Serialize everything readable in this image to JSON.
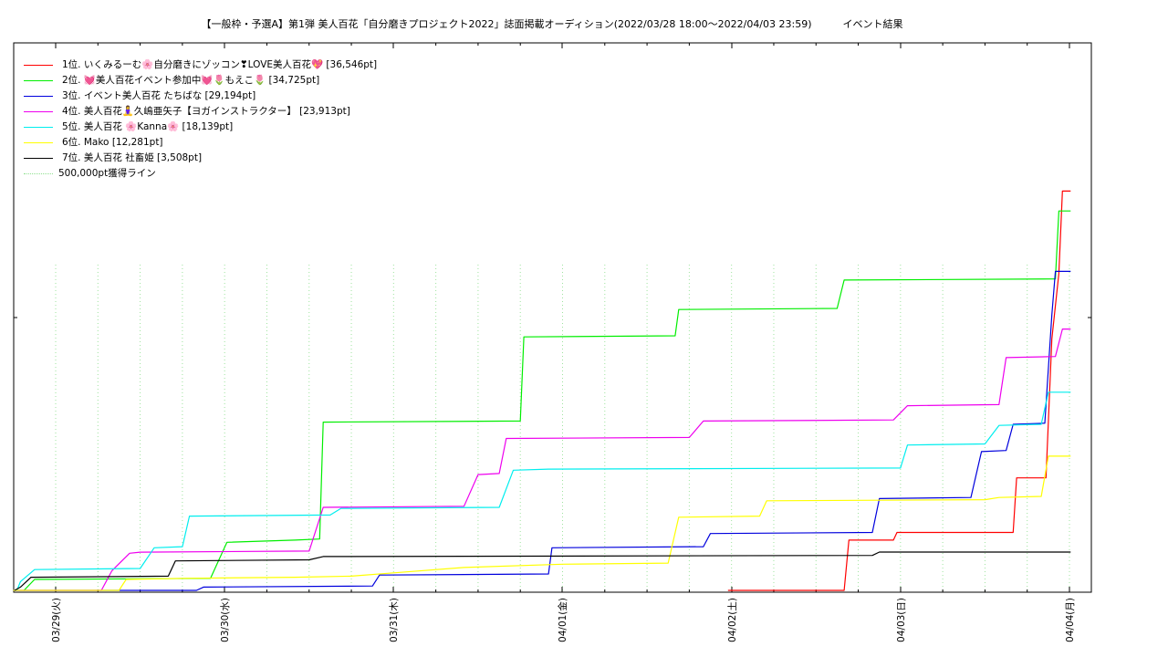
{
  "chart_data": {
    "type": "line",
    "title_part1": "【一般枠・予選A】第1弾 美人百花「自分磨きプロジェクト2022」誌面掲載オーディション(2022/03/28 18:00〜2022/04/03 23:59)",
    "title_part2": "イベント結果",
    "x_ticks": [
      "03/29(火)",
      "03/30(水)",
      "03/31(木)",
      "04/01(金)",
      "04/02(土)",
      "04/03(日)",
      "04/04(月)"
    ],
    "xlim": [
      "2022-03-28 18:00",
      "2022-04-04 00:10"
    ],
    "ylim": [
      0,
      40000
    ],
    "grid": "x-only dotted",
    "legend_placement": "top-left",
    "reference_line": {
      "label": "500,000pt獲得ライン",
      "value": 500000,
      "color": "#8fe08f"
    },
    "series": [
      {
        "name": "1位. いくみるーむ🌸自分磨きにゾッコン❣LOVE美人百花💖 [36,546pt]",
        "color": "#ff0000",
        "points": [
          [
            "2022-04-01 23:30",
            0
          ],
          [
            "2022-04-02 16:00",
            0
          ],
          [
            "2022-04-02 16:40",
            4600
          ],
          [
            "2022-04-02 23:00",
            4600
          ],
          [
            "2022-04-02 23:30",
            5300
          ],
          [
            "2022-04-03 16:00",
            5300
          ],
          [
            "2022-04-03 16:30",
            10300
          ],
          [
            "2022-04-03 20:40",
            10300
          ],
          [
            "2022-04-03 21:30",
            23000
          ],
          [
            "2022-04-03 22:30",
            29000
          ],
          [
            "2022-04-03 23:00",
            36546
          ],
          [
            "2022-04-04 00:10",
            36546
          ]
        ]
      },
      {
        "name": "2位. 💓美人百花イベント参加中💓🌷もえこ🌷 [34,725pt]",
        "color": "#00ee00",
        "points": [
          [
            "2022-03-28 19:30",
            0
          ],
          [
            "2022-03-28 21:00",
            1000
          ],
          [
            "2022-03-29 22:00",
            1100
          ],
          [
            "2022-03-30 00:20",
            4400
          ],
          [
            "2022-03-30 10:00",
            4600
          ],
          [
            "2022-03-30 13:30",
            4700
          ],
          [
            "2022-03-30 14:00",
            15400
          ],
          [
            "2022-03-31 18:00",
            15500
          ],
          [
            "2022-03-31 18:30",
            23200
          ],
          [
            "2022-04-01 16:00",
            23300
          ],
          [
            "2022-04-01 16:30",
            25700
          ],
          [
            "2022-04-02 15:00",
            25800
          ],
          [
            "2022-04-02 16:00",
            28400
          ],
          [
            "2022-04-03 22:00",
            28500
          ],
          [
            "2022-04-03 22:30",
            34725
          ],
          [
            "2022-04-04 00:10",
            34725
          ]
        ]
      },
      {
        "name": "3位. イベント美人百花 たちばな [29,194pt]",
        "color": "#0000dd",
        "points": [
          [
            "2022-03-28 18:20",
            0
          ],
          [
            "2022-03-29 20:00",
            0
          ],
          [
            "2022-03-29 21:00",
            300
          ],
          [
            "2022-03-30 21:00",
            400
          ],
          [
            "2022-03-30 22:00",
            1400
          ],
          [
            "2022-03-31 22:00",
            1500
          ],
          [
            "2022-03-31 22:30",
            3900
          ],
          [
            "2022-04-01 20:00",
            4000
          ],
          [
            "2022-04-01 21:00",
            5200
          ],
          [
            "2022-04-02 20:00",
            5300
          ],
          [
            "2022-04-02 21:00",
            8400
          ],
          [
            "2022-04-03 10:00",
            8500
          ],
          [
            "2022-04-03 11:30",
            12700
          ],
          [
            "2022-04-03 15:00",
            12800
          ],
          [
            "2022-04-03 16:00",
            15200
          ],
          [
            "2022-04-03 20:30",
            15300
          ],
          [
            "2022-04-03 21:30",
            25200
          ],
          [
            "2022-04-03 22:00",
            29194
          ],
          [
            "2022-04-04 00:10",
            29194
          ]
        ]
      },
      {
        "name": "4位. 美人百花🧘‍♀️久嶋亜矢子【ヨガインストラクター】 [23,913pt]",
        "color": "#ee00ee",
        "points": [
          [
            "2022-03-28 18:20",
            0
          ],
          [
            "2022-03-29 06:30",
            0
          ],
          [
            "2022-03-29 08:00",
            1800
          ],
          [
            "2022-03-29 10:30",
            3400
          ],
          [
            "2022-03-29 12:00",
            3500
          ],
          [
            "2022-03-30 12:00",
            3600
          ],
          [
            "2022-03-30 14:00",
            7600
          ],
          [
            "2022-03-31 10:00",
            7700
          ],
          [
            "2022-03-31 12:00",
            10600
          ],
          [
            "2022-03-31 15:00",
            10700
          ],
          [
            "2022-03-31 16:00",
            13900
          ],
          [
            "2022-04-01 18:00",
            14000
          ],
          [
            "2022-04-01 20:00",
            15500
          ],
          [
            "2022-04-02 23:00",
            15600
          ],
          [
            "2022-04-03 01:00",
            16900
          ],
          [
            "2022-04-03 14:00",
            17000
          ],
          [
            "2022-04-03 15:00",
            21300
          ],
          [
            "2022-04-03 22:00",
            21400
          ],
          [
            "2022-04-03 23:00",
            23913
          ],
          [
            "2022-04-04 00:10",
            23913
          ]
        ]
      },
      {
        "name": "5位. 美人百花 🌸Kanna🌸 [18,139pt]",
        "color": "#00eeee",
        "points": [
          [
            "2022-03-28 18:30",
            0
          ],
          [
            "2022-03-28 19:00",
            800
          ],
          [
            "2022-03-28 21:00",
            1900
          ],
          [
            "2022-03-29 12:00",
            2000
          ],
          [
            "2022-03-29 14:00",
            3900
          ],
          [
            "2022-03-29 18:00",
            4000
          ],
          [
            "2022-03-29 19:00",
            6800
          ],
          [
            "2022-03-30 15:00",
            6900
          ],
          [
            "2022-03-30 16:30",
            7500
          ],
          [
            "2022-03-31 15:00",
            7600
          ],
          [
            "2022-03-31 17:00",
            11000
          ],
          [
            "2022-03-31 22:00",
            11100
          ],
          [
            "2022-04-03 00:00",
            11200
          ],
          [
            "2022-04-03 01:00",
            13300
          ],
          [
            "2022-04-03 12:00",
            13400
          ],
          [
            "2022-04-03 14:00",
            15100
          ],
          [
            "2022-04-03 20:00",
            15200
          ],
          [
            "2022-04-03 21:00",
            18139
          ],
          [
            "2022-04-04 00:10",
            18139
          ]
        ]
      },
      {
        "name": "6位. Mako [12,281pt]",
        "color": "#ffff00",
        "points": [
          [
            "2022-03-28 18:00",
            0
          ],
          [
            "2022-03-29 09:00",
            0
          ],
          [
            "2022-03-29 10:00",
            1000
          ],
          [
            "2022-03-29 18:00",
            1100
          ],
          [
            "2022-03-30 10:00",
            1200
          ],
          [
            "2022-03-30 18:00",
            1300
          ],
          [
            "2022-03-31 00:00",
            1600
          ],
          [
            "2022-03-31 10:00",
            2100
          ],
          [
            "2022-04-01 00:00",
            2400
          ],
          [
            "2022-04-01 15:00",
            2500
          ],
          [
            "2022-04-01 16:30",
            6700
          ],
          [
            "2022-04-02 04:00",
            6800
          ],
          [
            "2022-04-02 05:00",
            8200
          ],
          [
            "2022-04-03 12:00",
            8300
          ],
          [
            "2022-04-03 14:00",
            8500
          ],
          [
            "2022-04-03 20:00",
            8600
          ],
          [
            "2022-04-03 21:00",
            12281
          ],
          [
            "2022-04-04 00:10",
            12281
          ]
        ]
      },
      {
        "name": "7位. 美人百花 社畜姫 [3,508pt]",
        "color": "#000000",
        "points": [
          [
            "2022-03-28 18:10",
            0
          ],
          [
            "2022-03-28 19:00",
            300
          ],
          [
            "2022-03-28 20:30",
            1200
          ],
          [
            "2022-03-29 16:00",
            1300
          ],
          [
            "2022-03-29 17:00",
            2700
          ],
          [
            "2022-03-30 12:00",
            2800
          ],
          [
            "2022-03-30 14:00",
            3100
          ],
          [
            "2022-04-02 20:00",
            3200
          ],
          [
            "2022-04-02 21:00",
            3508
          ],
          [
            "2022-04-04 00:10",
            3508
          ]
        ]
      }
    ]
  }
}
